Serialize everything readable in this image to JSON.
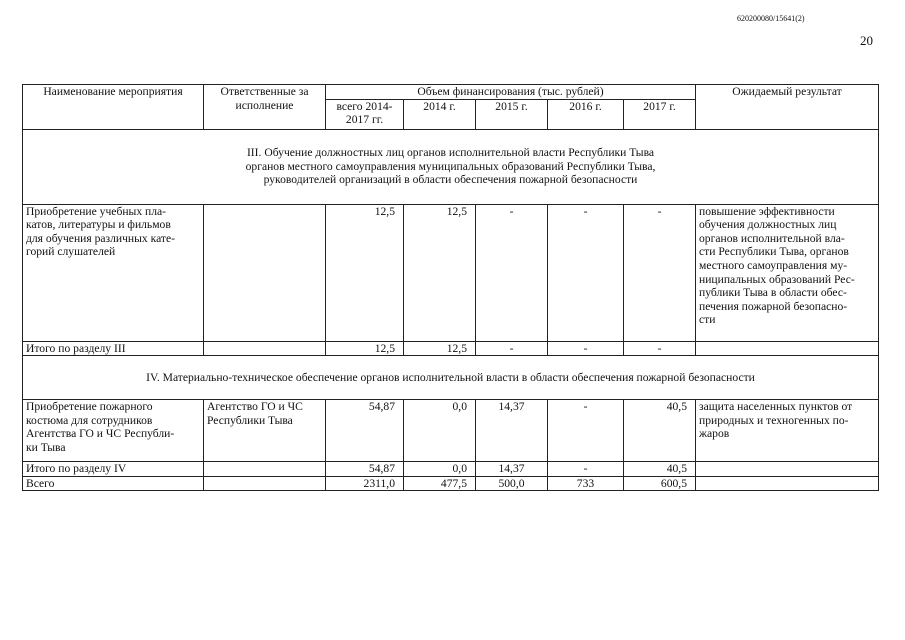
{
  "doc_id": "620200080/15641(2)",
  "page_number": "20",
  "header": {
    "name": "Наименование мероприятия",
    "responsible": "Ответственные за\nисполнение",
    "funding": "Объем финансирования (тыс. рублей)",
    "total": "всего 2014-\n2017 гг.",
    "y2014": "2014 г.",
    "y2015": "2015 г.",
    "y2016": "2016 г.",
    "y2017": "2017 г.",
    "result": "Ожидаемый результат"
  },
  "section3": "III. Обучение должностных лиц органов исполнительной власти Республики Тыва\nорганов местного самоуправления муниципальных образований Республики Тыва,\nруководителей организаций в области обеспечения пожарной безопасности",
  "section4": "IV. Материально-техническое обеспечение органов исполнительной власти в области обеспечения пожарной безопасности",
  "rows": [
    {
      "name": "Приобретение учебных пла-\nкатов, литературы и фильмов\nдля обучения различных кате-\nгорий слушателей",
      "responsible": "",
      "total": "12,5",
      "y2014": "12,5",
      "y2015": "-",
      "y2016": "-",
      "y2017": "-",
      "result": "повышение эффективности\nобучения должностных лиц\nорганов исполнительной вла-\nсти Республики Тыва, органов\nместного самоуправления му-\nниципальных образований Рес-\nпублики Тыва в области обес-\nпечения пожарной безопасно-\nсти"
    },
    {
      "name": "Итого по разделу III",
      "responsible": "",
      "total": "12,5",
      "y2014": "12,5",
      "y2015": "-",
      "y2016": "-",
      "y2017": "-",
      "result": ""
    },
    {
      "name": "Приобретение пожарного\nкостюма для сотрудников\nАгентства ГО и ЧС Республи-\nки Тыва",
      "responsible": "Агентство ГО и ЧС\nРеспублики Тыва",
      "total": "54,87",
      "y2014": "0,0",
      "y2015": "14,37",
      "y2016": "-",
      "y2017": "40,5",
      "result": "защита населенных пунктов от\nприродных и техногенных по-\nжаров"
    },
    {
      "name": "Итого по разделу IV",
      "responsible": "",
      "total": "54,87",
      "y2014": "0,0",
      "y2015": "14,37",
      "y2016": "-",
      "y2017": "40,5",
      "result": ""
    },
    {
      "name": "Всего",
      "responsible": "",
      "total": "2311,0",
      "y2014": "477,5",
      "y2015": "500,0",
      "y2016": "733",
      "y2017": "600,5",
      "result": ""
    }
  ]
}
